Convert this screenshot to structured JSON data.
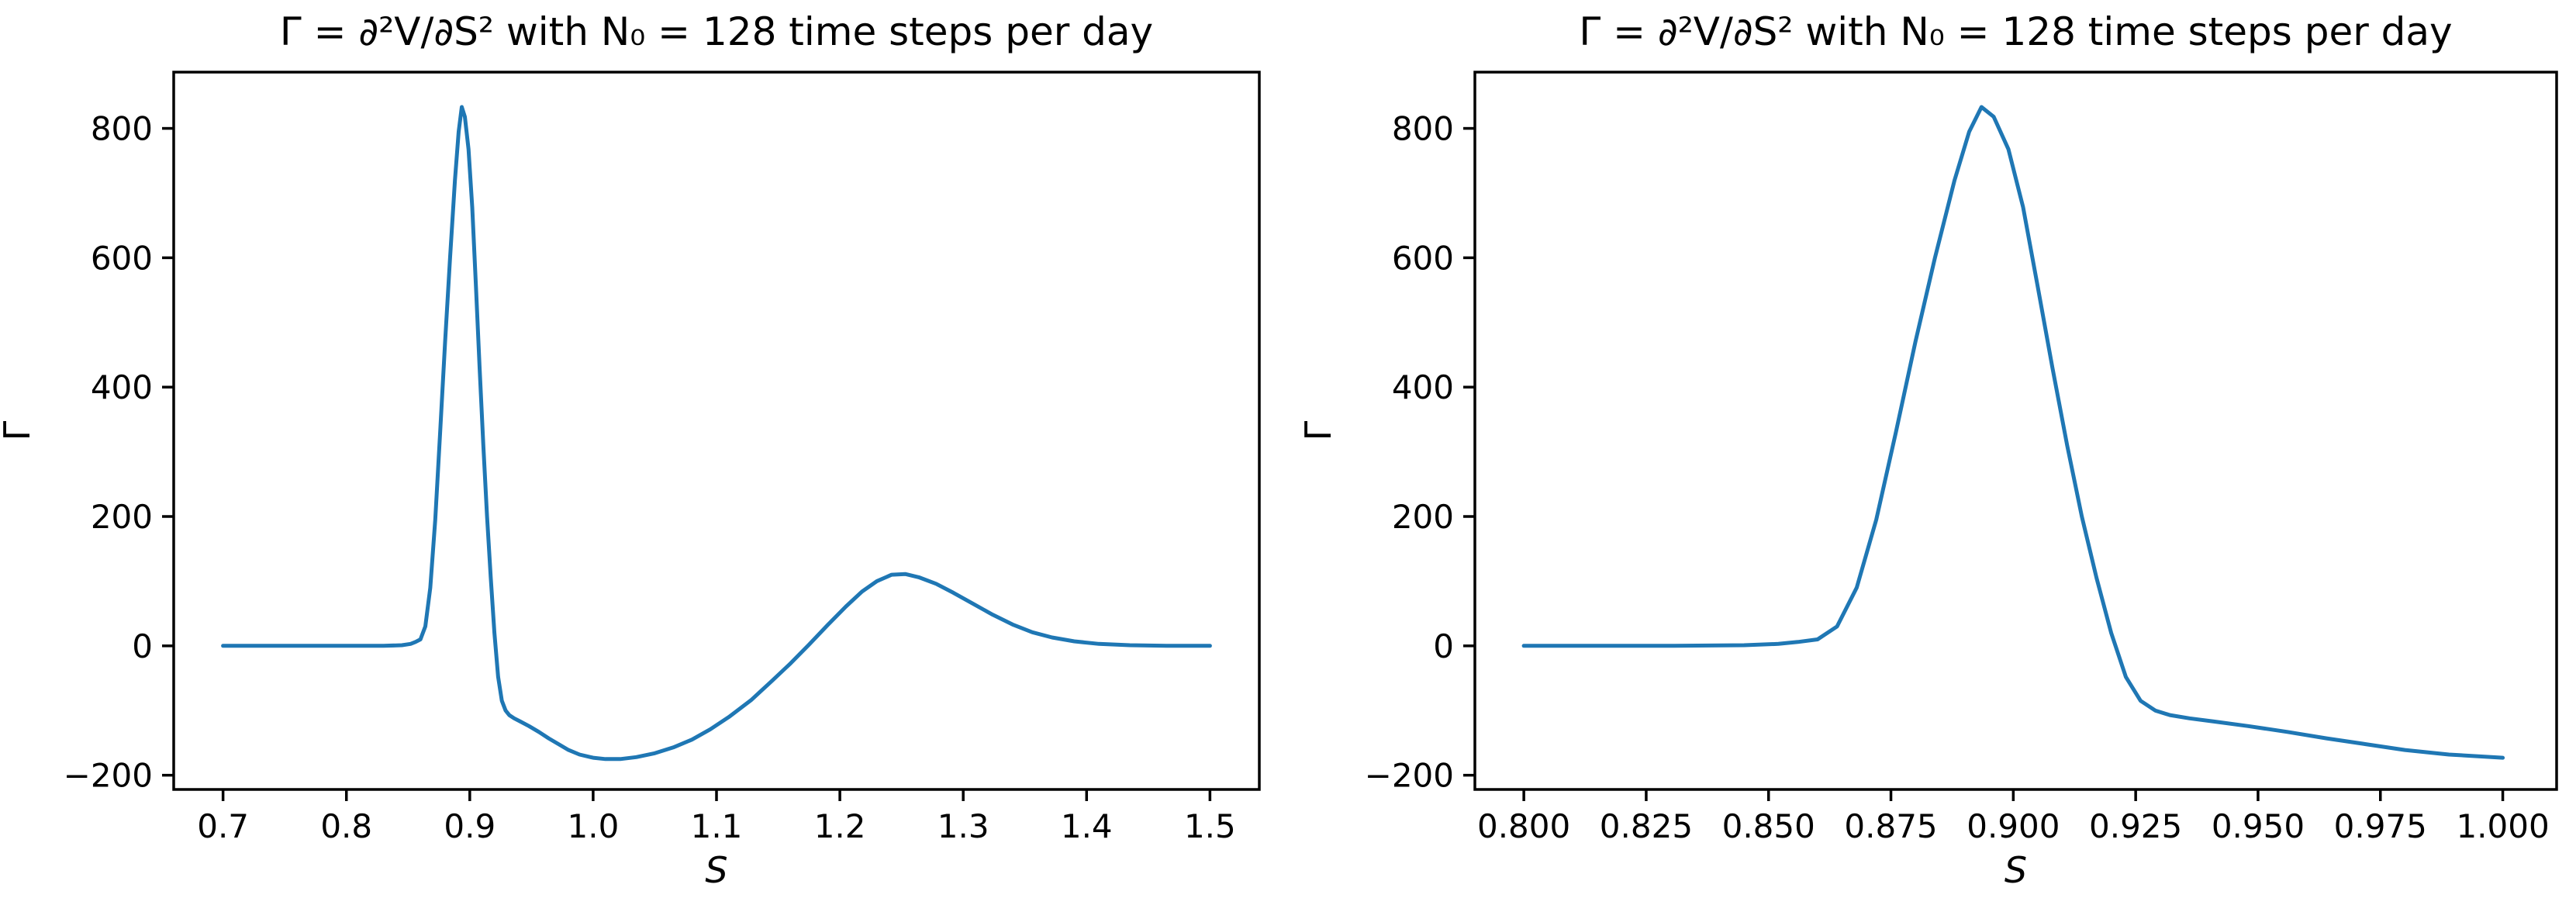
{
  "figure": {
    "background": "#ffffff",
    "line_color": "#1f77b4",
    "axis_color": "#000000"
  },
  "chart_data": [
    {
      "type": "line",
      "title": "Γ = ∂²V/∂S² with N₀ = 128 time steps per day",
      "xlabel": "S",
      "ylabel": "Γ",
      "grid": false,
      "legend": null,
      "xlim": [
        0.66,
        1.54
      ],
      "ylim": [
        -222,
        887
      ],
      "x_range": [
        0.7,
        1.5
      ],
      "xticks": [
        0.7,
        0.8,
        0.9,
        1.0,
        1.1,
        1.2,
        1.3,
        1.4,
        1.5
      ],
      "xtick_labels": [
        "0.7",
        "0.8",
        "0.9",
        "1.0",
        "1.1",
        "1.2",
        "1.3",
        "1.4",
        "1.5"
      ],
      "ytick_values": [
        -200,
        0,
        200,
        400,
        600,
        800
      ],
      "ytick_labels": [
        "−200",
        "0",
        "200",
        "400",
        "600",
        "800"
      ],
      "series_source": "gamma_curve"
    },
    {
      "type": "line",
      "title": "Γ = ∂²V/∂S² with N₀ = 128 time steps per day",
      "xlabel": "S",
      "ylabel": "Γ",
      "grid": false,
      "legend": null,
      "xlim": [
        0.79,
        1.011
      ],
      "ylim": [
        -222,
        887
      ],
      "x_range": [
        0.8,
        1.0
      ],
      "xticks": [
        0.8,
        0.825,
        0.85,
        0.875,
        0.9,
        0.925,
        0.95,
        0.975,
        1.0
      ],
      "xtick_labels": [
        "0.800",
        "0.825",
        "0.850",
        "0.875",
        "0.900",
        "0.925",
        "0.950",
        "0.975",
        "1.000"
      ],
      "ytick_values": [
        -200,
        0,
        200,
        400,
        600,
        800
      ],
      "ytick_labels": [
        "−200",
        "0",
        "200",
        "400",
        "600",
        "800"
      ],
      "series_source": "gamma_curve"
    }
  ],
  "gamma_curve": [
    [
      0.7,
      0
    ],
    [
      0.74,
      0
    ],
    [
      0.78,
      0
    ],
    [
      0.8,
      0
    ],
    [
      0.815,
      0
    ],
    [
      0.83,
      0
    ],
    [
      0.845,
      1
    ],
    [
      0.852,
      3
    ],
    [
      0.856,
      6
    ],
    [
      0.86,
      10
    ],
    [
      0.864,
      30
    ],
    [
      0.868,
      90
    ],
    [
      0.872,
      195
    ],
    [
      0.876,
      330
    ],
    [
      0.88,
      470
    ],
    [
      0.884,
      600
    ],
    [
      0.888,
      720
    ],
    [
      0.891,
      795
    ],
    [
      0.8935,
      833
    ],
    [
      0.896,
      818
    ],
    [
      0.899,
      768
    ],
    [
      0.902,
      678
    ],
    [
      0.905,
      555
    ],
    [
      0.908,
      430
    ],
    [
      0.911,
      310
    ],
    [
      0.914,
      200
    ],
    [
      0.917,
      105
    ],
    [
      0.92,
      20
    ],
    [
      0.923,
      -48
    ],
    [
      0.926,
      -85
    ],
    [
      0.929,
      -100
    ],
    [
      0.932,
      -107
    ],
    [
      0.936,
      -112
    ],
    [
      0.941,
      -117
    ],
    [
      0.948,
      -124
    ],
    [
      0.956,
      -133
    ],
    [
      0.964,
      -143
    ],
    [
      0.972,
      -152
    ],
    [
      0.98,
      -161
    ],
    [
      0.989,
      -168
    ],
    [
      1.0,
      -173
    ],
    [
      1.01,
      -175
    ],
    [
      1.022,
      -175
    ],
    [
      1.035,
      -172
    ],
    [
      1.05,
      -166
    ],
    [
      1.065,
      -157
    ],
    [
      1.08,
      -145
    ],
    [
      1.095,
      -129
    ],
    [
      1.11,
      -110
    ],
    [
      1.128,
      -84
    ],
    [
      1.145,
      -54
    ],
    [
      1.16,
      -27
    ],
    [
      1.175,
      2
    ],
    [
      1.19,
      32
    ],
    [
      1.205,
      61
    ],
    [
      1.218,
      84
    ],
    [
      1.23,
      100
    ],
    [
      1.242,
      110
    ],
    [
      1.253,
      111
    ],
    [
      1.264,
      106
    ],
    [
      1.278,
      96
    ],
    [
      1.292,
      82
    ],
    [
      1.308,
      65
    ],
    [
      1.324,
      48
    ],
    [
      1.34,
      33
    ],
    [
      1.356,
      21
    ],
    [
      1.372,
      13
    ],
    [
      1.39,
      7
    ],
    [
      1.41,
      3
    ],
    [
      1.435,
      1
    ],
    [
      1.465,
      0
    ],
    [
      1.5,
      0
    ]
  ]
}
